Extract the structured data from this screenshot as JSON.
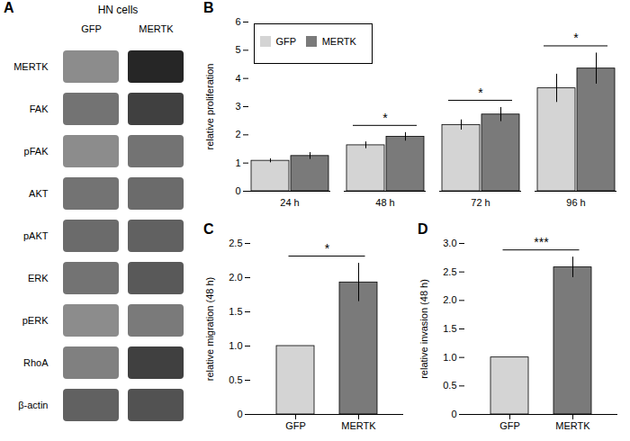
{
  "chart_data": [
    {
      "type": "heatmap",
      "panel_label": "A",
      "title": "HN cells",
      "x": [
        "GFP",
        "MERTK"
      ],
      "y": [
        "MERTK",
        "FAK",
        "pFAK",
        "AKT",
        "pAKT",
        "ERK",
        "pERK",
        "RhoA",
        "β-actin"
      ],
      "cells": [
        [
          0.55,
          0.15
        ],
        [
          0.45,
          0.25
        ],
        [
          0.55,
          0.45
        ],
        [
          0.45,
          0.42
        ],
        [
          0.42,
          0.38
        ],
        [
          0.45,
          0.35
        ],
        [
          0.55,
          0.48
        ],
        [
          0.5,
          0.25
        ],
        [
          0.38,
          0.32
        ]
      ]
    },
    {
      "type": "bar",
      "panel_label": "B",
      "categories": [
        "24 h",
        "48 h",
        "72 h",
        "96 h"
      ],
      "series": [
        {
          "name": "GFP",
          "color": "#d4d4d4",
          "values": [
            1.08,
            1.63,
            2.35,
            3.65
          ],
          "errors": [
            0.07,
            0.12,
            0.18,
            0.5
          ]
        },
        {
          "name": "MERTK",
          "color": "#7a7a7a",
          "values": [
            1.25,
            1.93,
            2.72,
            4.35
          ],
          "errors": [
            0.12,
            0.15,
            0.25,
            0.55
          ]
        }
      ],
      "ylabel": "relative proliferation",
      "ylim": [
        0,
        6
      ],
      "yticks": [
        0,
        1,
        2,
        3,
        4,
        5,
        6
      ],
      "legend": "upper left",
      "annotations": [
        {
          "text": "*",
          "category": "48 h"
        },
        {
          "text": "*",
          "category": "72 h"
        },
        {
          "text": "*",
          "category": "96 h"
        }
      ]
    },
    {
      "type": "bar",
      "panel_label": "C",
      "categories": [
        "GFP",
        "MERTK"
      ],
      "values": [
        1.0,
        1.93
      ],
      "errors": [
        0.0,
        0.28
      ],
      "colors": [
        "#d4d4d4",
        "#7a7a7a"
      ],
      "ylabel": "relative migration (48 h)",
      "ylim": [
        0,
        2.5
      ],
      "yticks": [
        0,
        0.5,
        {
          "value": 1,
          "label": "1.0"
        },
        1.5,
        {
          "value": 2,
          "label": "2.0"
        },
        2.5
      ],
      "annotations": [
        {
          "text": "*",
          "between": [
            "GFP",
            "MERTK"
          ]
        }
      ]
    },
    {
      "type": "bar",
      "panel_label": "D",
      "categories": [
        "GFP",
        "MERTK"
      ],
      "values": [
        1.0,
        2.58
      ],
      "errors": [
        0.0,
        0.18
      ],
      "colors": [
        "#d4d4d4",
        "#7a7a7a"
      ],
      "ylabel": "relative invasion (48 h)",
      "ylim": [
        0,
        3
      ],
      "yticks": [
        0,
        0.5,
        {
          "value": 1,
          "label": "1.0"
        },
        1.5,
        {
          "value": 2,
          "label": "2.0"
        },
        2.5,
        {
          "value": 3,
          "label": "3.0"
        }
      ],
      "annotations": [
        {
          "text": "***",
          "between": [
            "GFP",
            "MERTK"
          ]
        }
      ]
    }
  ]
}
